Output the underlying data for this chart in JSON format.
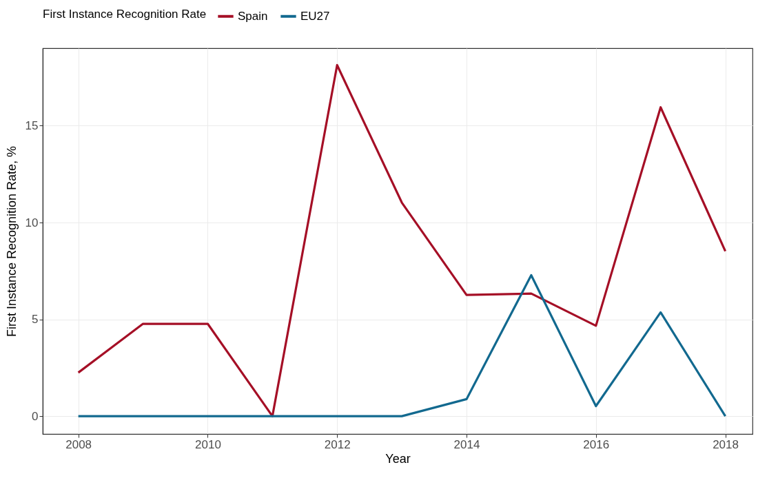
{
  "chart_data": {
    "type": "line",
    "xlabel": "Year",
    "ylabel": "First Instance Recognition Rate, %",
    "legend_title": "First Instance Recognition Rate",
    "x": [
      2008,
      2009,
      2010,
      2011,
      2012,
      2013,
      2014,
      2015,
      2016,
      2017,
      2018
    ],
    "series": [
      {
        "name": "Spain",
        "color": "#a50f26",
        "values": [
          2.25,
          4.77,
          4.77,
          0,
          18.13,
          11.03,
          6.26,
          6.33,
          4.67,
          15.95,
          8.52
        ]
      },
      {
        "name": "EU27",
        "color": "#12698f",
        "values": [
          0,
          0,
          0,
          0,
          0,
          0,
          0.88,
          7.28,
          0.52,
          5.36,
          0
        ]
      }
    ],
    "xlim": [
      2007.45,
      2018.42
    ],
    "xticks": [
      2008,
      2010,
      2012,
      2014,
      2016,
      2018
    ],
    "ylim": [
      -0.92,
      19.0
    ],
    "yticks": [
      0,
      5,
      10,
      15
    ],
    "grid": true,
    "legend": "top",
    "marker": "none",
    "line_style": "solid"
  }
}
